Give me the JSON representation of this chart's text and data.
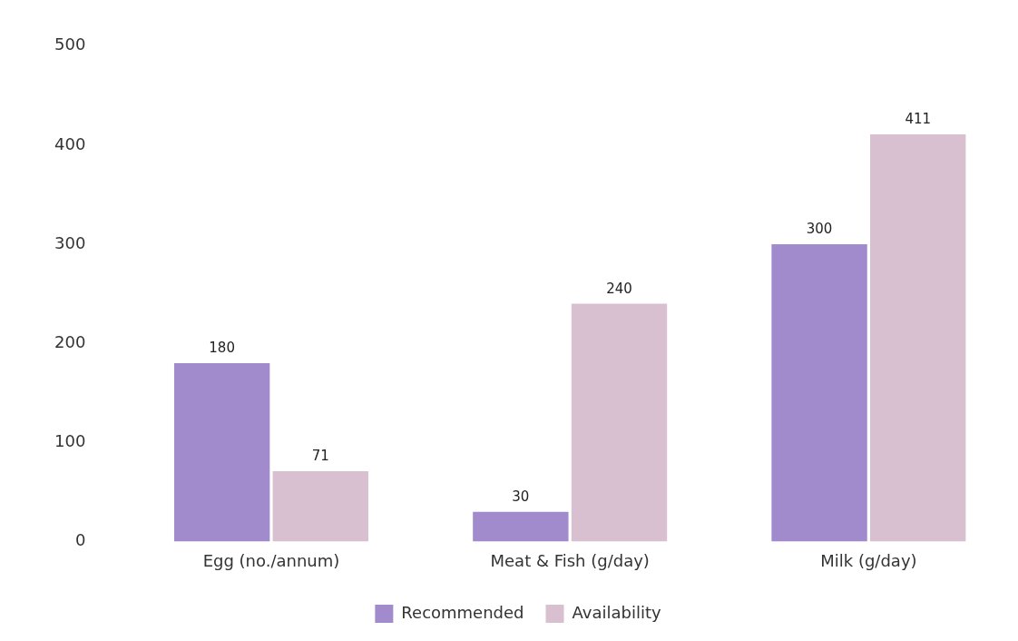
{
  "chart_data": {
    "type": "bar",
    "categories": [
      "Egg (no./annum)",
      "Meat & Fish (g/day)",
      "Milk (g/day)"
    ],
    "series": [
      {
        "name": "Recommended",
        "color": "#a18bcc",
        "values": [
          180,
          30,
          300
        ]
      },
      {
        "name": "Availability",
        "color": "#d8c0d0",
        "values": [
          71,
          240,
          411
        ]
      }
    ],
    "ylim": [
      0,
      500
    ],
    "yticks": [
      0,
      100,
      200,
      300,
      400,
      500
    ],
    "grid": false,
    "legend": "bottom",
    "data_labels": true
  }
}
